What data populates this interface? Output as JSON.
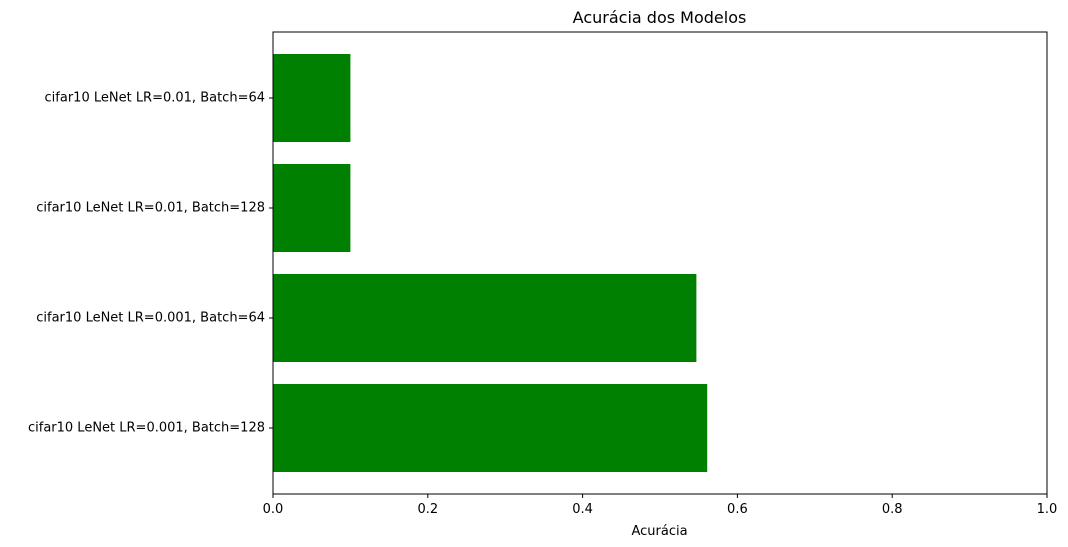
{
  "chart_data": {
    "type": "bar",
    "orientation": "horizontal",
    "title": "Acurácia dos Modelos",
    "xlabel": "Acurácia",
    "ylabel": "",
    "xlim": [
      0,
      1.0
    ],
    "x_ticks": [
      "0.0",
      "0.2",
      "0.4",
      "0.6",
      "0.8",
      "1.0"
    ],
    "categories": [
      "cifar10 LeNet LR=0.001, Batch=128",
      "cifar10 LeNet LR=0.001, Batch=64",
      "cifar10 LeNet LR=0.01, Batch=128",
      "cifar10 LeNet LR=0.01, Batch=64"
    ],
    "values": [
      0.561,
      0.547,
      0.1,
      0.1
    ],
    "bar_color": "#008000",
    "grid": false,
    "legend": "none"
  }
}
